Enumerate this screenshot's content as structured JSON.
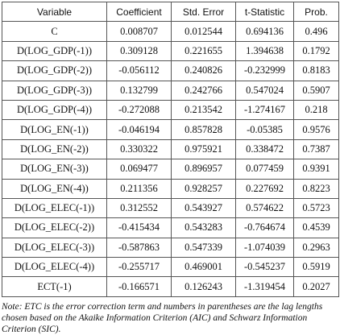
{
  "table": {
    "header": [
      "Variable",
      "Coefficient",
      "Std. Error",
      "t-Statistic",
      "Prob."
    ],
    "rows": [
      [
        "C",
        "0.008707",
        "0.012544",
        "0.694136",
        "0.496"
      ],
      [
        "D(LOG_GDP(-1))",
        "0.309128",
        "0.221655",
        "1.394638",
        "0.1792"
      ],
      [
        "D(LOG_GDP(-2))",
        "-0.056112",
        "0.240826",
        "-0.232999",
        "0.8183"
      ],
      [
        "D(LOG_GDP(-3))",
        "0.132799",
        "0.242766",
        "0.547024",
        "0.5907"
      ],
      [
        "D(LOG_GDP(-4))",
        "-0.272088",
        "0.213542",
        "-1.274167",
        "0.218"
      ],
      [
        "D(LOG_EN(-1))",
        "-0.046194",
        "0.857828",
        "-0.05385",
        "0.9576"
      ],
      [
        "D(LOG_EN(-2))",
        "0.330322",
        "0.975921",
        "0.338472",
        "0.7387"
      ],
      [
        "D(LOG_EN(-3))",
        "0.069477",
        "0.896957",
        "0.077459",
        "0.9391"
      ],
      [
        "D(LOG_EN(-4))",
        "0.211356",
        "0.928257",
        "0.227692",
        "0.8223"
      ],
      [
        "D(LOG_ELEC(-1))",
        "0.312552",
        "0.543927",
        "0.574622",
        "0.5723"
      ],
      [
        "D(LOG_ELEC(-2))",
        "-0.415434",
        "0.543283",
        "-0.764674",
        "0.4539"
      ],
      [
        "D(LOG_ELEC(-3))",
        "-0.587863",
        "0.547339",
        "-1.074039",
        "0.2963"
      ],
      [
        "D(LOG_ELEC(-4))",
        "-0.255717",
        "0.469001",
        "-0.545237",
        "0.5919"
      ],
      [
        "ECT(-1)",
        "-0.166571",
        "0.126243",
        "-1.319454",
        "0.2027"
      ]
    ],
    "note": "Note: ETC is the error correction term and numbers in parentheses are the lag lengths chosen based on the Akaike Information Criterion (AIC) and Schwarz Information Criterion (SIC)."
  }
}
